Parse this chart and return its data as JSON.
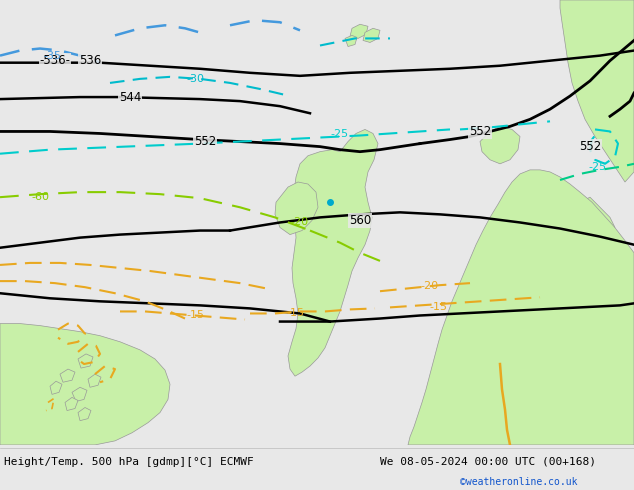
{
  "title_left": "Height/Temp. 500 hPa [gdmp][°C] ECMWF",
  "title_right": "We 08-05-2024 00:00 UTC (00+168)",
  "credit": "©weatheronline.co.uk",
  "bg_color": "#e8e8e8",
  "land_color": "#c8f0a8",
  "border_color": "#999999",
  "bottom_bar_color": "#f0f0f0",
  "text_color_black": "#000000",
  "text_color_blue": "#1155cc",
  "contour_black": "#000000",
  "contour_cyan_blue": "#4499dd",
  "contour_cyan": "#00cccc",
  "contour_green": "#00cc88",
  "contour_green2": "#88cc00",
  "contour_orange": "#e8a820",
  "figsize": [
    6.34,
    4.9
  ],
  "dpi": 100
}
